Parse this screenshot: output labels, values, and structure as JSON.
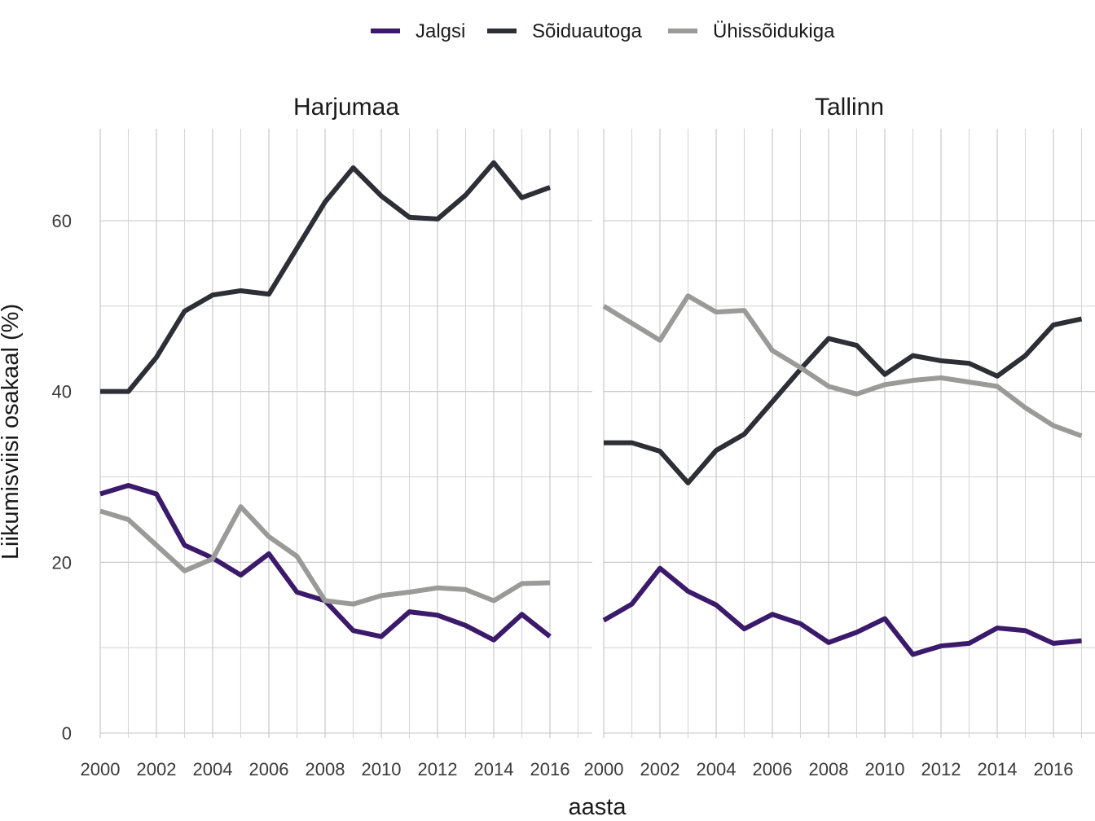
{
  "chart_data": {
    "type": "line",
    "xlabel": "aasta",
    "ylabel": "Liikumisviisi osakaal (%)",
    "ylim": [
      0,
      70
    ],
    "xlim": [
      2000,
      2017.5
    ],
    "y_ticks": [
      0,
      20,
      40,
      60
    ],
    "x_ticks": [
      2000,
      2002,
      2004,
      2006,
      2008,
      2010,
      2012,
      2014,
      2016
    ],
    "grid": true,
    "legend_position": "top",
    "legend": [
      {
        "name": "Jalgsi",
        "color": "#3b1a6b"
      },
      {
        "name": "Sõiduautoga",
        "color": "#2c2f36"
      },
      {
        "name": "Ühissõidukiga",
        "color": "#9a9b99"
      }
    ],
    "panels": [
      {
        "title": "Harjumaa",
        "x": [
          2000,
          2001,
          2002,
          2003,
          2004,
          2005,
          2006,
          2007,
          2008,
          2009,
          2010,
          2011,
          2012,
          2013,
          2014,
          2015,
          2016
        ],
        "series": [
          {
            "name": "Jalgsi",
            "values": [
              28,
              29,
              28,
              22,
              20.5,
              18.5,
              21,
              16.5,
              15.5,
              12,
              11.3,
              14.2,
              13.8,
              12.6,
              10.9,
              13.9,
              11.3
            ]
          },
          {
            "name": "Sõiduautoga",
            "values": [
              40,
              40,
              44,
              49.4,
              51.3,
              51.8,
              51.4,
              56.8,
              62.2,
              66.2,
              62.9,
              60.4,
              60.2,
              63,
              66.8,
              62.7,
              63.9
            ]
          },
          {
            "name": "Ühissõidukiga",
            "values": [
              26,
              25,
              22,
              19,
              20.4,
              26.5,
              23,
              20.7,
              15.5,
              15.1,
              16.1,
              16.5,
              17,
              16.8,
              15.5,
              17.5,
              17.6
            ]
          }
        ]
      },
      {
        "title": "Tallinn",
        "x": [
          2000,
          2001,
          2002,
          2003,
          2004,
          2005,
          2006,
          2007,
          2008,
          2009,
          2010,
          2011,
          2012,
          2013,
          2014,
          2015,
          2016,
          2017
        ],
        "series": [
          {
            "name": "Jalgsi",
            "values": [
              13.2,
              15.1,
              19.3,
              16.6,
              15,
              12.2,
              13.9,
              12.8,
              10.6,
              11.8,
              13.4,
              9.2,
              10.2,
              10.5,
              12.3,
              12,
              10.5,
              10.8
            ]
          },
          {
            "name": "Sõiduautoga",
            "values": [
              34,
              34,
              33,
              29.3,
              33.1,
              35,
              38.8,
              42.6,
              46.2,
              45.4,
              42,
              44.2,
              43.6,
              43.3,
              41.8,
              44.2,
              47.8,
              48.5
            ]
          },
          {
            "name": "Ühissõidukiga",
            "values": [
              50,
              48,
              46,
              51.2,
              49.3,
              49.5,
              44.8,
              42.8,
              40.6,
              39.7,
              40.8,
              41.3,
              41.6,
              41.1,
              40.6,
              38.1,
              36,
              34.8
            ]
          }
        ]
      }
    ]
  }
}
